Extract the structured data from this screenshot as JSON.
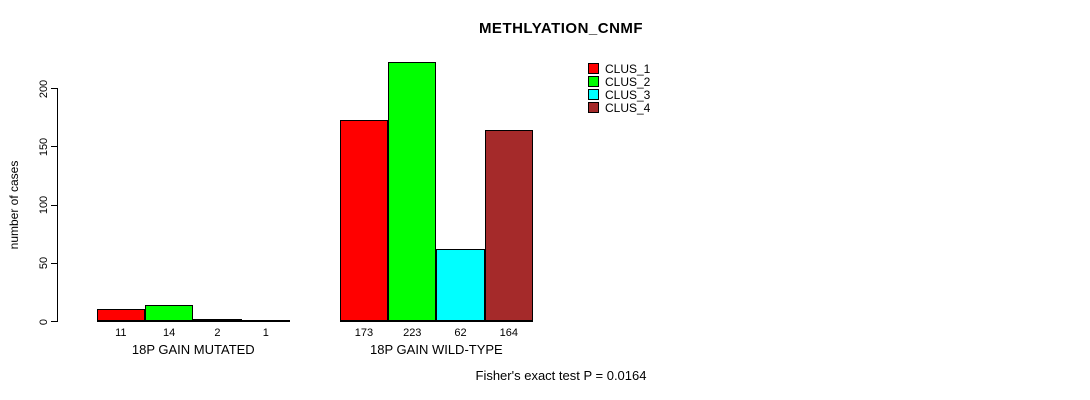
{
  "chart_data": {
    "type": "bar",
    "title": "METHLYATION_CNMF",
    "ylabel": "number of cases",
    "footer": "Fisher's exact test P = 0.0164",
    "yticks": [
      0,
      50,
      100,
      150,
      200
    ],
    "ylim": [
      0,
      230
    ],
    "grid": false,
    "legend_position": "top-right",
    "legend": [
      {
        "label": "CLUS_1",
        "color": "#FF0000"
      },
      {
        "label": "CLUS_2",
        "color": "#00FF00"
      },
      {
        "label": "CLUS_3",
        "color": "#00FFFF"
      },
      {
        "label": "CLUS_4",
        "color": "#A52A2A"
      }
    ],
    "groups": [
      {
        "label": "18P GAIN MUTATED",
        "values": [
          11,
          14,
          2,
          1
        ]
      },
      {
        "label": "18P GAIN WILD-TYPE",
        "values": [
          173,
          223,
          62,
          164
        ]
      }
    ],
    "bar_border_color": "#000000"
  }
}
